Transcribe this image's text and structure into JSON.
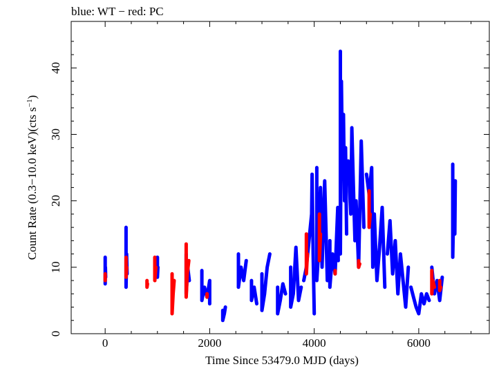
{
  "chart_data": {
    "type": "scatter",
    "title": "blue: WT − red: PC",
    "xlabel": "Time Since 53479.0 MJD (days)",
    "ylabel_main": "Count Rate (0.3−10.0 keV)(cts s",
    "ylabel_sup": "−1",
    "ylabel_end": ")",
    "xlim": [
      -650,
      7350
    ],
    "ylim": [
      0,
      47
    ],
    "xticks": [
      0,
      2000,
      4000,
      6000
    ],
    "yticks": [
      0,
      10,
      20,
      30,
      40
    ],
    "grid": false,
    "series": [
      {
        "name": "WT",
        "color": "#0000ff",
        "segments": [
          [
            [
              0,
              11.5
            ],
            [
              0,
              7.5
            ],
            [
              5,
              10
            ],
            [
              10,
              8.5
            ]
          ],
          [
            [
              400,
              16
            ],
            [
              400,
              7
            ],
            [
              410,
              12
            ],
            [
              420,
              9
            ]
          ],
          [
            [
              1000,
              11.5
            ],
            [
              1000,
              8.5
            ],
            [
              1010,
              10
            ]
          ],
          [
            [
              1550,
              12
            ],
            [
              1550,
              6
            ],
            [
              1580,
              10
            ],
            [
              1610,
              8
            ]
          ],
          [
            [
              1850,
              9.5
            ],
            [
              1850,
              5
            ],
            [
              1900,
              7
            ],
            [
              1950,
              5.5
            ],
            [
              2000,
              8
            ],
            [
              2000,
              4.5
            ]
          ],
          [
            [
              2250,
              3.5
            ],
            [
              2250,
              2
            ],
            [
              2280,
              3
            ],
            [
              2300,
              4
            ]
          ],
          [
            [
              2550,
              12
            ],
            [
              2550,
              7
            ],
            [
              2600,
              10
            ],
            [
              2650,
              8
            ],
            [
              2700,
              11
            ]
          ],
          [
            [
              2800,
              8
            ],
            [
              2800,
              5
            ],
            [
              2850,
              7
            ],
            [
              2900,
              4.5
            ]
          ],
          [
            [
              3000,
              9
            ],
            [
              3000,
              3.5
            ],
            [
              3050,
              6
            ],
            [
              3100,
              10
            ],
            [
              3150,
              12
            ]
          ],
          [
            [
              3300,
              7
            ],
            [
              3300,
              3
            ],
            [
              3350,
              5
            ],
            [
              3400,
              7.5
            ],
            [
              3450,
              6
            ]
          ],
          [
            [
              3550,
              10
            ],
            [
              3550,
              4
            ],
            [
              3600,
              6
            ],
            [
              3650,
              13
            ],
            [
              3700,
              5
            ],
            [
              3750,
              7
            ]
          ],
          [
            [
              3800,
              8
            ],
            [
              3850,
              10
            ],
            [
              3900,
              14
            ],
            [
              3950,
              18
            ],
            [
              3960,
              24
            ],
            [
              3980,
              12
            ],
            [
              4000,
              3
            ]
          ],
          [
            [
              4050,
              25
            ],
            [
              4050,
              8
            ],
            [
              4080,
              12
            ],
            [
              4100,
              18
            ],
            [
              4120,
              22
            ],
            [
              4150,
              10
            ],
            [
              4200,
              23
            ],
            [
              4250,
              8
            ]
          ],
          [
            [
              4300,
              14
            ],
            [
              4300,
              7
            ],
            [
              4350,
              12
            ],
            [
              4400,
              9
            ],
            [
              4450,
              19
            ],
            [
              4460,
              11
            ]
          ],
          [
            [
              4500,
              42.5
            ],
            [
              4500,
              12
            ],
            [
              4520,
              38
            ],
            [
              4540,
              25
            ],
            [
              4560,
              33
            ],
            [
              4580,
              20
            ],
            [
              4600,
              28
            ],
            [
              4620,
              15
            ]
          ],
          [
            [
              4650,
              26
            ],
            [
              4700,
              18
            ],
            [
              4720,
              31
            ],
            [
              4750,
              22
            ],
            [
              4780,
              14
            ],
            [
              4800,
              20
            ],
            [
              4850,
              10
            ],
            [
              4900,
              29
            ],
            [
              4950,
              16
            ]
          ],
          [
            [
              5000,
              24
            ],
            [
              5050,
              21
            ],
            [
              5100,
              25
            ],
            [
              5120,
              10
            ],
            [
              5150,
              18
            ],
            [
              5200,
              8
            ],
            [
              5250,
              13
            ],
            [
              5300,
              19
            ],
            [
              5350,
              7
            ]
          ],
          [
            [
              5400,
              12
            ],
            [
              5450,
              17
            ],
            [
              5500,
              9
            ],
            [
              5550,
              14
            ],
            [
              5600,
              6
            ],
            [
              5650,
              12
            ],
            [
              5700,
              8
            ],
            [
              5750,
              4
            ],
            [
              5800,
              10
            ]
          ],
          [
            [
              5850,
              7
            ],
            [
              5900,
              5.5
            ],
            [
              5950,
              4
            ],
            [
              6000,
              3
            ],
            [
              6050,
              6
            ],
            [
              6100,
              4.5
            ],
            [
              6150,
              6
            ],
            [
              6200,
              5
            ]
          ],
          [
            [
              6250,
              10
            ],
            [
              6300,
              6
            ],
            [
              6350,
              8
            ],
            [
              6400,
              5
            ],
            [
              6450,
              8.5
            ]
          ],
          [
            [
              6650,
              25.5
            ],
            [
              6650,
              11.5
            ],
            [
              6670,
              20
            ],
            [
              6690,
              15
            ],
            [
              6700,
              23
            ]
          ]
        ]
      },
      {
        "name": "PC",
        "color": "#ff0000",
        "segments": [
          [
            [
              0,
              9
            ],
            [
              0,
              8
            ]
          ],
          [
            [
              400,
              11.5
            ],
            [
              400,
              8.5
            ],
            [
              410,
              10
            ]
          ],
          [
            [
              800,
              8
            ],
            [
              800,
              7
            ],
            [
              810,
              7.5
            ]
          ],
          [
            [
              950,
              11.5
            ],
            [
              950,
              8
            ],
            [
              970,
              10
            ]
          ],
          [
            [
              1280,
              9
            ],
            [
              1280,
              3
            ],
            [
              1300,
              6
            ],
            [
              1320,
              8
            ]
          ],
          [
            [
              1550,
              13.5
            ],
            [
              1550,
              5.5
            ],
            [
              1570,
              9
            ],
            [
              1600,
              11
            ]
          ],
          [
            [
              1950,
              6
            ],
            [
              1950,
              5.5
            ]
          ],
          [
            [
              3850,
              15
            ],
            [
              3850,
              9
            ],
            [
              3870,
              12
            ]
          ],
          [
            [
              4100,
              18
            ],
            [
              4100,
              11
            ],
            [
              4120,
              15
            ]
          ],
          [
            [
              4400,
              9.5
            ],
            [
              4400,
              9
            ]
          ],
          [
            [
              4850,
              11
            ],
            [
              4850,
              10
            ],
            [
              4870,
              10.5
            ]
          ],
          [
            [
              5050,
              21.5
            ],
            [
              5050,
              16
            ],
            [
              5070,
              18
            ]
          ],
          [
            [
              6250,
              9.5
            ],
            [
              6250,
              6
            ],
            [
              6270,
              8
            ],
            [
              6300,
              7
            ]
          ],
          [
            [
              6400,
              8
            ],
            [
              6400,
              6.5
            ],
            [
              6420,
              7
            ]
          ]
        ]
      }
    ]
  }
}
